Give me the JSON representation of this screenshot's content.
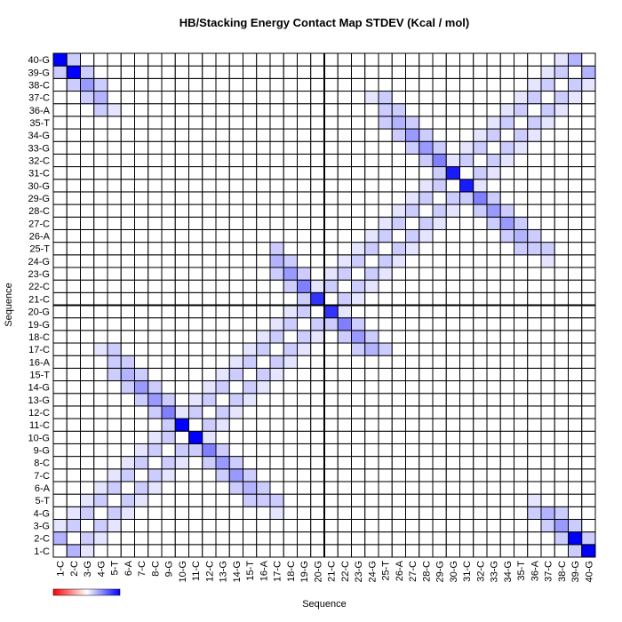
{
  "chart_data": {
    "type": "heatmap",
    "title": "HB/Stacking Energy Contact Map STDEV (Kcal / mol)",
    "x_label": "Sequence",
    "y_label": "Sequence",
    "categories": [
      "1-C",
      "2-C",
      "3-G",
      "4-G",
      "5-T",
      "6-A",
      "7-C",
      "8-C",
      "9-G",
      "10-G",
      "11-C",
      "12-C",
      "13-G",
      "14-G",
      "15-T",
      "16-A",
      "17-C",
      "18-C",
      "19-G",
      "20-G",
      "21-C",
      "22-C",
      "23-G",
      "24-G",
      "25-T",
      "26-A",
      "27-C",
      "28-C",
      "29-G",
      "30-G",
      "31-C",
      "32-C",
      "33-G",
      "34-G",
      "35-T",
      "36-A",
      "37-C",
      "38-C",
      "39-G",
      "40-G"
    ],
    "y_categories": [
      "1-C",
      "2-C",
      "3-G",
      "4-G",
      "5-T",
      "6-A",
      "7-C",
      "8-C",
      "9-G",
      "10-G",
      "11-C",
      "12-C",
      "13-G",
      "14-G",
      "15-T",
      "16-A",
      "17-C",
      "18-C",
      "19-G",
      "20-G",
      "21-C",
      "22-C",
      "23-G",
      "24-G",
      "25-T",
      "26-A",
      "27-C",
      "28-C",
      "29-G",
      "30-G",
      "31-C",
      "32-C",
      "33-G",
      "34-G",
      "35-T",
      "36-A",
      "37-C",
      "38-C",
      "39-G",
      "40-G"
    ],
    "zlim": [
      -10,
      10
    ],
    "colors": [
      "#ff0000",
      "#ffffff",
      "#0000ff"
    ],
    "z": [
      [
        0,
        3,
        1,
        0,
        0,
        0,
        0,
        0,
        0,
        0,
        0,
        0,
        0,
        0,
        0,
        0,
        0,
        0,
        0,
        0,
        0,
        0,
        0,
        0,
        0,
        0,
        0,
        0,
        0,
        0,
        0,
        0,
        0,
        0,
        0,
        0,
        0,
        0,
        2,
        10
      ],
      [
        3,
        0,
        2,
        1,
        0,
        0,
        0,
        0,
        0,
        0,
        0,
        0,
        0,
        0,
        0,
        0,
        0,
        0,
        0,
        0,
        0,
        0,
        0,
        0,
        0,
        0,
        0,
        0,
        0,
        0,
        0,
        0,
        0,
        0,
        0,
        0,
        0,
        2,
        10,
        2
      ],
      [
        1,
        2,
        0,
        2,
        1,
        0,
        0,
        0,
        0,
        0,
        0,
        0,
        0,
        0,
        0,
        0,
        0,
        0,
        0,
        0,
        0,
        0,
        0,
        0,
        0,
        0,
        0,
        0,
        0,
        0,
        0,
        0,
        0,
        0,
        0,
        0,
        2,
        4,
        2,
        0
      ],
      [
        0,
        1,
        2,
        0,
        2,
        1,
        0,
        0,
        0,
        0,
        0,
        0,
        0,
        0,
        0,
        0,
        1,
        0,
        0,
        0,
        0,
        0,
        0,
        0,
        0,
        0,
        0,
        0,
        0,
        0,
        0,
        0,
        0,
        0,
        0,
        2,
        3,
        2,
        0,
        0
      ],
      [
        0,
        0,
        1,
        2,
        0,
        2,
        1,
        0,
        0,
        0,
        0,
        0,
        0,
        0,
        2,
        2,
        2,
        0,
        0,
        0,
        0,
        0,
        0,
        0,
        0,
        0,
        0,
        0,
        0,
        0,
        0,
        0,
        0,
        0,
        0,
        1,
        0,
        0,
        0,
        0
      ],
      [
        0,
        0,
        0,
        1,
        2,
        0,
        2,
        1,
        0,
        0,
        0,
        0,
        0,
        2,
        3,
        2,
        0,
        0,
        0,
        0,
        0,
        0,
        0,
        0,
        0,
        0,
        0,
        0,
        0,
        0,
        0,
        0,
        0,
        0,
        0,
        0,
        0,
        0,
        0,
        0
      ],
      [
        0,
        0,
        0,
        0,
        1,
        2,
        0,
        2,
        1,
        0,
        0,
        0,
        2,
        4,
        2,
        0,
        0,
        0,
        0,
        0,
        0,
        0,
        0,
        0,
        0,
        0,
        0,
        0,
        0,
        0,
        0,
        0,
        0,
        0,
        0,
        0,
        0,
        0,
        0,
        0
      ],
      [
        0,
        0,
        0,
        0,
        0,
        1,
        2,
        0,
        2,
        1,
        0,
        2,
        4,
        2,
        0,
        0,
        0,
        0,
        0,
        0,
        0,
        0,
        0,
        0,
        0,
        0,
        0,
        0,
        0,
        0,
        0,
        0,
        0,
        0,
        0,
        0,
        0,
        0,
        0,
        0
      ],
      [
        0,
        0,
        0,
        0,
        0,
        0,
        1,
        2,
        0,
        2,
        2,
        5,
        2,
        0,
        0,
        0,
        0,
        0,
        0,
        0,
        0,
        0,
        0,
        0,
        0,
        0,
        0,
        0,
        0,
        0,
        0,
        0,
        0,
        0,
        0,
        0,
        0,
        0,
        0,
        0
      ],
      [
        0,
        0,
        0,
        0,
        0,
        0,
        0,
        1,
        2,
        0,
        10,
        1,
        0,
        0,
        0,
        0,
        0,
        0,
        0,
        0,
        0,
        0,
        0,
        0,
        0,
        0,
        0,
        0,
        0,
        0,
        0,
        0,
        0,
        0,
        0,
        0,
        0,
        0,
        0,
        0
      ],
      [
        0,
        0,
        0,
        0,
        0,
        0,
        0,
        0,
        2,
        10,
        0,
        2,
        1,
        0,
        0,
        0,
        0,
        0,
        0,
        0,
        0,
        0,
        0,
        0,
        0,
        0,
        0,
        0,
        0,
        0,
        0,
        0,
        0,
        0,
        0,
        0,
        0,
        0,
        0,
        0
      ],
      [
        0,
        0,
        0,
        0,
        0,
        0,
        0,
        2,
        5,
        1,
        2,
        0,
        2,
        1,
        0,
        0,
        0,
        0,
        0,
        0,
        0,
        0,
        0,
        0,
        0,
        0,
        0,
        0,
        0,
        0,
        0,
        0,
        0,
        0,
        0,
        0,
        0,
        0,
        0,
        0
      ],
      [
        0,
        0,
        0,
        0,
        0,
        0,
        2,
        4,
        2,
        0,
        1,
        2,
        0,
        2,
        1,
        0,
        0,
        0,
        0,
        0,
        0,
        0,
        0,
        0,
        0,
        0,
        0,
        0,
        0,
        0,
        0,
        0,
        0,
        0,
        0,
        0,
        0,
        0,
        0,
        0
      ],
      [
        0,
        0,
        0,
        0,
        0,
        2,
        4,
        2,
        0,
        0,
        0,
        1,
        2,
        0,
        2,
        1,
        0,
        0,
        0,
        0,
        0,
        0,
        0,
        0,
        0,
        0,
        0,
        0,
        0,
        0,
        0,
        0,
        0,
        0,
        0,
        0,
        0,
        0,
        0,
        0
      ],
      [
        0,
        0,
        0,
        0,
        2,
        3,
        2,
        0,
        0,
        0,
        0,
        0,
        1,
        2,
        0,
        2,
        1,
        0,
        0,
        0,
        0,
        0,
        0,
        0,
        0,
        0,
        0,
        0,
        0,
        0,
        0,
        0,
        0,
        0,
        0,
        0,
        0,
        0,
        0,
        0
      ],
      [
        0,
        0,
        0,
        0,
        2,
        2,
        0,
        0,
        0,
        0,
        0,
        0,
        0,
        1,
        2,
        0,
        2,
        1,
        0,
        0,
        0,
        0,
        0,
        0,
        0,
        0,
        0,
        0,
        0,
        0,
        0,
        0,
        0,
        0,
        0,
        0,
        0,
        0,
        0,
        0
      ],
      [
        0,
        0,
        0,
        1,
        2,
        0,
        0,
        0,
        0,
        0,
        0,
        0,
        0,
        0,
        1,
        2,
        0,
        2,
        1,
        0,
        0,
        0,
        2,
        3,
        2,
        0,
        0,
        0,
        0,
        0,
        0,
        0,
        0,
        0,
        0,
        0,
        0,
        0,
        0,
        0
      ],
      [
        0,
        0,
        0,
        0,
        0,
        0,
        0,
        0,
        0,
        0,
        0,
        0,
        0,
        0,
        0,
        1,
        2,
        0,
        2,
        1,
        0,
        2,
        4,
        2,
        0,
        0,
        0,
        0,
        0,
        0,
        0,
        0,
        0,
        0,
        0,
        0,
        0,
        0,
        0,
        0
      ],
      [
        0,
        0,
        0,
        0,
        0,
        0,
        0,
        0,
        0,
        0,
        0,
        0,
        0,
        0,
        0,
        0,
        1,
        2,
        0,
        2,
        2,
        5,
        2,
        0,
        0,
        0,
        0,
        0,
        0,
        0,
        0,
        0,
        0,
        0,
        0,
        0,
        0,
        0,
        0,
        0
      ],
      [
        0,
        0,
        0,
        0,
        0,
        0,
        0,
        0,
        0,
        0,
        0,
        0,
        0,
        0,
        0,
        0,
        0,
        1,
        2,
        0,
        8,
        1,
        0,
        0,
        0,
        0,
        0,
        0,
        0,
        0,
        0,
        0,
        0,
        0,
        0,
        0,
        0,
        0,
        0,
        0
      ],
      [
        0,
        0,
        0,
        0,
        0,
        0,
        0,
        0,
        0,
        0,
        0,
        0,
        0,
        0,
        0,
        0,
        0,
        0,
        2,
        8,
        0,
        2,
        1,
        0,
        0,
        0,
        0,
        0,
        0,
        0,
        0,
        0,
        0,
        0,
        0,
        0,
        0,
        0,
        0,
        0
      ],
      [
        0,
        0,
        0,
        0,
        0,
        0,
        0,
        0,
        0,
        0,
        0,
        0,
        0,
        0,
        0,
        0,
        0,
        2,
        5,
        1,
        2,
        0,
        2,
        1,
        0,
        0,
        0,
        0,
        0,
        0,
        0,
        0,
        0,
        0,
        0,
        0,
        0,
        0,
        0,
        0
      ],
      [
        0,
        0,
        0,
        0,
        0,
        0,
        0,
        0,
        0,
        0,
        0,
        0,
        0,
        0,
        0,
        0,
        2,
        4,
        2,
        0,
        1,
        2,
        0,
        2,
        1,
        0,
        0,
        0,
        0,
        0,
        0,
        0,
        0,
        0,
        0,
        0,
        0,
        0,
        0,
        0
      ],
      [
        0,
        0,
        0,
        0,
        0,
        0,
        0,
        0,
        0,
        0,
        0,
        0,
        0,
        0,
        0,
        0,
        3,
        2,
        0,
        0,
        0,
        1,
        2,
        0,
        2,
        1,
        0,
        0,
        0,
        0,
        0,
        0,
        0,
        0,
        0,
        0,
        1,
        0,
        0,
        0
      ],
      [
        0,
        0,
        0,
        0,
        0,
        0,
        0,
        0,
        0,
        0,
        0,
        0,
        0,
        0,
        0,
        0,
        2,
        0,
        0,
        0,
        0,
        0,
        1,
        2,
        0,
        2,
        1,
        0,
        0,
        0,
        0,
        0,
        0,
        0,
        2,
        2,
        2,
        0,
        0,
        0
      ],
      [
        0,
        0,
        0,
        0,
        0,
        0,
        0,
        0,
        0,
        0,
        0,
        0,
        0,
        0,
        0,
        0,
        0,
        0,
        0,
        0,
        0,
        0,
        0,
        1,
        2,
        0,
        2,
        1,
        0,
        0,
        0,
        0,
        0,
        2,
        3,
        2,
        0,
        0,
        0,
        0
      ],
      [
        0,
        0,
        0,
        0,
        0,
        0,
        0,
        0,
        0,
        0,
        0,
        0,
        0,
        0,
        0,
        0,
        0,
        0,
        0,
        0,
        0,
        0,
        0,
        0,
        1,
        2,
        0,
        2,
        1,
        0,
        0,
        0,
        2,
        4,
        2,
        0,
        0,
        0,
        0,
        0
      ],
      [
        0,
        0,
        0,
        0,
        0,
        0,
        0,
        0,
        0,
        0,
        0,
        0,
        0,
        0,
        0,
        0,
        0,
        0,
        0,
        0,
        0,
        0,
        0,
        0,
        0,
        1,
        2,
        0,
        2,
        1,
        0,
        2,
        4,
        2,
        0,
        0,
        0,
        0,
        0,
        0
      ],
      [
        0,
        0,
        0,
        0,
        0,
        0,
        0,
        0,
        0,
        0,
        0,
        0,
        0,
        0,
        0,
        0,
        0,
        0,
        0,
        0,
        0,
        0,
        0,
        0,
        0,
        0,
        1,
        2,
        0,
        2,
        2,
        5,
        2,
        0,
        0,
        0,
        0,
        0,
        0,
        0
      ],
      [
        0,
        0,
        0,
        0,
        0,
        0,
        0,
        0,
        0,
        0,
        0,
        0,
        0,
        0,
        0,
        0,
        0,
        0,
        0,
        0,
        0,
        0,
        0,
        0,
        0,
        0,
        0,
        1,
        2,
        0,
        9,
        1,
        0,
        0,
        0,
        0,
        0,
        0,
        0,
        0
      ],
      [
        0,
        0,
        0,
        0,
        0,
        0,
        0,
        0,
        0,
        0,
        0,
        0,
        0,
        0,
        0,
        0,
        0,
        0,
        0,
        0,
        0,
        0,
        0,
        0,
        0,
        0,
        0,
        0,
        2,
        9,
        0,
        2,
        1,
        0,
        0,
        0,
        0,
        0,
        0,
        0
      ],
      [
        0,
        0,
        0,
        0,
        0,
        0,
        0,
        0,
        0,
        0,
        0,
        0,
        0,
        0,
        0,
        0,
        0,
        0,
        0,
        0,
        0,
        0,
        0,
        0,
        0,
        0,
        0,
        2,
        5,
        1,
        2,
        0,
        2,
        1,
        0,
        0,
        0,
        0,
        0,
        0
      ],
      [
        0,
        0,
        0,
        0,
        0,
        0,
        0,
        0,
        0,
        0,
        0,
        0,
        0,
        0,
        0,
        0,
        0,
        0,
        0,
        0,
        0,
        0,
        0,
        0,
        0,
        0,
        2,
        4,
        2,
        0,
        1,
        2,
        0,
        2,
        1,
        0,
        0,
        0,
        0,
        0
      ],
      [
        0,
        0,
        0,
        0,
        0,
        0,
        0,
        0,
        0,
        0,
        0,
        0,
        0,
        0,
        0,
        0,
        0,
        0,
        0,
        0,
        0,
        0,
        0,
        0,
        0,
        2,
        4,
        2,
        0,
        0,
        0,
        1,
        2,
        0,
        2,
        1,
        0,
        0,
        0,
        0
      ],
      [
        0,
        0,
        0,
        0,
        0,
        0,
        0,
        0,
        0,
        0,
        0,
        0,
        0,
        0,
        0,
        0,
        0,
        0,
        0,
        0,
        0,
        0,
        0,
        0,
        2,
        3,
        2,
        0,
        0,
        0,
        0,
        0,
        1,
        2,
        0,
        2,
        1,
        0,
        0,
        0
      ],
      [
        0,
        0,
        0,
        2,
        1,
        0,
        0,
        0,
        0,
        0,
        0,
        0,
        0,
        0,
        0,
        0,
        0,
        0,
        0,
        0,
        0,
        0,
        0,
        0,
        2,
        2,
        0,
        0,
        0,
        0,
        0,
        0,
        0,
        1,
        2,
        0,
        2,
        1,
        0,
        0
      ],
      [
        0,
        0,
        2,
        3,
        0,
        0,
        0,
        0,
        0,
        0,
        0,
        0,
        0,
        0,
        0,
        0,
        0,
        0,
        0,
        0,
        0,
        0,
        0,
        1,
        2,
        0,
        0,
        0,
        0,
        0,
        0,
        0,
        0,
        0,
        1,
        2,
        0,
        2,
        1,
        0
      ],
      [
        0,
        2,
        4,
        2,
        0,
        0,
        0,
        0,
        0,
        0,
        0,
        0,
        0,
        0,
        0,
        0,
        0,
        0,
        0,
        0,
        0,
        0,
        0,
        0,
        0,
        0,
        0,
        0,
        0,
        0,
        0,
        0,
        0,
        0,
        0,
        1,
        2,
        0,
        2,
        1
      ],
      [
        2,
        10,
        2,
        0,
        0,
        0,
        0,
        0,
        0,
        0,
        0,
        0,
        0,
        0,
        0,
        0,
        0,
        0,
        0,
        0,
        0,
        0,
        0,
        0,
        0,
        0,
        0,
        0,
        0,
        0,
        0,
        0,
        0,
        0,
        0,
        0,
        1,
        2,
        0,
        3
      ],
      [
        10,
        2,
        0,
        0,
        0,
        0,
        0,
        0,
        0,
        0,
        0,
        0,
        0,
        0,
        0,
        0,
        0,
        0,
        0,
        0,
        0,
        0,
        0,
        0,
        0,
        0,
        0,
        0,
        0,
        0,
        0,
        0,
        0,
        0,
        0,
        0,
        0,
        1,
        3,
        0
      ]
    ]
  }
}
